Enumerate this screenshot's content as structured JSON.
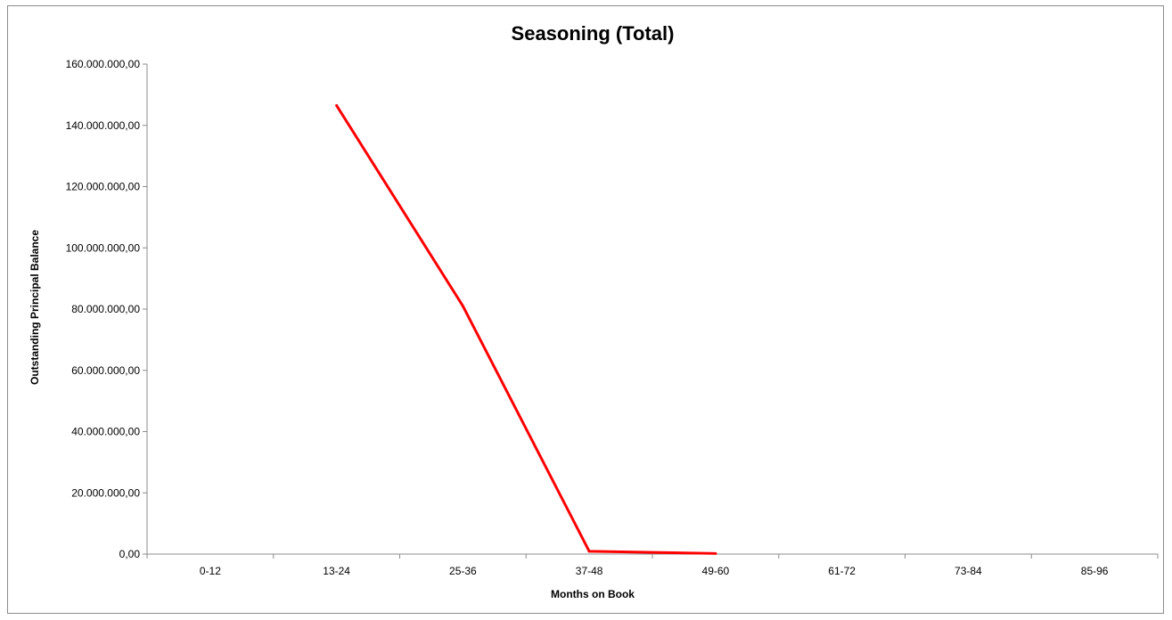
{
  "chart_data": {
    "type": "line",
    "title": "Seasoning (Total)",
    "xlabel": "Months on Book",
    "ylabel": "Outstanding Principal Balance",
    "categories": [
      "0-12",
      "13-24",
      "25-36",
      "37-48",
      "49-60",
      "61-72",
      "73-84",
      "85-96"
    ],
    "series": [
      {
        "values": [
          null,
          146500000,
          81000000,
          900000,
          200000,
          null,
          null,
          null
        ],
        "color": "#ff0000"
      }
    ],
    "ylim": [
      0,
      160000000
    ],
    "yticks": [
      0,
      20000000,
      40000000,
      60000000,
      80000000,
      100000000,
      120000000,
      140000000,
      160000000
    ],
    "ytick_labels": [
      "0,00",
      "20.000.000,00",
      "40.000.000,00",
      "60.000.000,00",
      "80.000.000,00",
      "100.000.000,00",
      "120.000.000,00",
      "140.000.000,00",
      "160.000.000,00"
    ],
    "grid": false,
    "legend": "none"
  }
}
